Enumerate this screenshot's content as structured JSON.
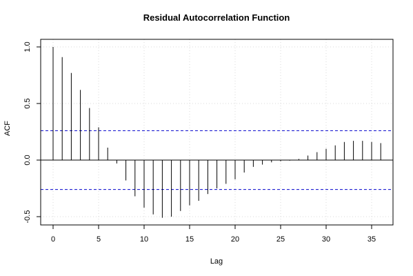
{
  "chart_data": {
    "type": "bar",
    "title": "Residual Autocorrelation Function",
    "xlabel": "Lag",
    "ylabel": "ACF",
    "xlim": [
      0,
      36
    ],
    "ylim": [
      -0.5,
      1.0
    ],
    "x_ticks": [
      0,
      5,
      10,
      15,
      20,
      25,
      30,
      35
    ],
    "y_ticks": [
      -0.5,
      0.0,
      0.5,
      1.0
    ],
    "x_tick_labels": [
      "0",
      "5",
      "10",
      "15",
      "20",
      "25",
      "30",
      "35"
    ],
    "y_tick_labels": [
      "-0.5",
      "0.0",
      "0.5",
      "1.0"
    ],
    "grid": true,
    "confidence_bounds": [
      0.26,
      -0.26
    ],
    "confidence_color": "#0000cc",
    "bar_color": "#000000",
    "grid_color": "#d8d8d8",
    "lags": [
      0,
      1,
      2,
      3,
      4,
      5,
      6,
      7,
      8,
      9,
      10,
      11,
      12,
      13,
      14,
      15,
      16,
      17,
      18,
      19,
      20,
      21,
      22,
      23,
      24,
      25,
      26,
      27,
      28,
      29,
      30,
      31,
      32,
      33,
      34,
      35,
      36
    ],
    "values": [
      1.0,
      0.91,
      0.77,
      0.62,
      0.46,
      0.29,
      0.11,
      -0.03,
      -0.18,
      -0.32,
      -0.42,
      -0.48,
      -0.51,
      -0.5,
      -0.45,
      -0.4,
      -0.36,
      -0.3,
      -0.25,
      -0.21,
      -0.17,
      -0.11,
      -0.06,
      -0.04,
      -0.02,
      -0.01,
      -0.005,
      0.01,
      0.04,
      0.07,
      0.1,
      0.13,
      0.16,
      0.17,
      0.17,
      0.16,
      0.15
    ]
  }
}
